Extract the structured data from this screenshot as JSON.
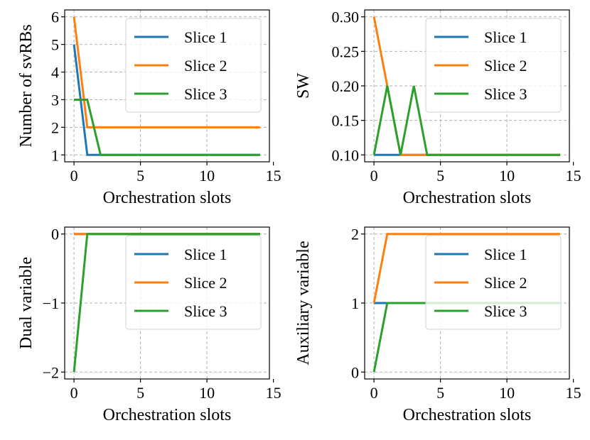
{
  "colors": {
    "slice1": "#1f77b4",
    "slice2": "#ff7f0e",
    "slice3": "#2ca02c"
  },
  "chart_data": [
    {
      "type": "line",
      "xlabel": "Orchestration slots",
      "ylabel": "Number of svRBs",
      "xlim": [
        -0.7,
        14.7
      ],
      "ylim": [
        0.75,
        6.25
      ],
      "xticks": [
        0,
        5,
        10,
        15
      ],
      "yticks": [
        1,
        2,
        3,
        4,
        5,
        6
      ],
      "ytick_labels": [
        "1",
        "2",
        "3",
        "4",
        "5",
        "6"
      ],
      "legend_position": "top-right",
      "grid": true,
      "series": [
        {
          "name": "Slice 1",
          "color": "#1f77b4",
          "x": [
            0,
            1,
            2,
            3,
            4,
            5,
            6,
            7,
            8,
            9,
            10,
            11,
            12,
            13,
            14
          ],
          "y": [
            5,
            1,
            1,
            1,
            1,
            1,
            1,
            1,
            1,
            1,
            1,
            1,
            1,
            1,
            1
          ]
        },
        {
          "name": "Slice 2",
          "color": "#ff7f0e",
          "x": [
            0,
            1,
            2,
            3,
            4,
            5,
            6,
            7,
            8,
            9,
            10,
            11,
            12,
            13,
            14
          ],
          "y": [
            6,
            2,
            2,
            2,
            2,
            2,
            2,
            2,
            2,
            2,
            2,
            2,
            2,
            2,
            2
          ]
        },
        {
          "name": "Slice 3",
          "color": "#2ca02c",
          "x": [
            0,
            1,
            2,
            3,
            4,
            5,
            6,
            7,
            8,
            9,
            10,
            11,
            12,
            13,
            14
          ],
          "y": [
            3,
            3,
            1,
            1,
            1,
            1,
            1,
            1,
            1,
            1,
            1,
            1,
            1,
            1,
            1
          ]
        }
      ]
    },
    {
      "type": "line",
      "xlabel": "Orchestration slots",
      "ylabel": "SW",
      "xlim": [
        -0.7,
        14.7
      ],
      "ylim": [
        0.09,
        0.31
      ],
      "xticks": [
        0,
        5,
        10,
        15
      ],
      "yticks": [
        0.1,
        0.15,
        0.2,
        0.25,
        0.3
      ],
      "ytick_labels": [
        "0.10",
        "0.15",
        "0.20",
        "0.25",
        "0.30"
      ],
      "legend_position": "top-right",
      "grid": true,
      "series": [
        {
          "name": "Slice 1",
          "color": "#1f77b4",
          "x": [
            0,
            1,
            2,
            3,
            4,
            5,
            6,
            7,
            8,
            9,
            10,
            11,
            12,
            13,
            14
          ],
          "y": [
            0.1,
            0.1,
            0.1,
            0.1,
            0.1,
            0.1,
            0.1,
            0.1,
            0.1,
            0.1,
            0.1,
            0.1,
            0.1,
            0.1,
            0.1
          ]
        },
        {
          "name": "Slice 2",
          "color": "#ff7f0e",
          "x": [
            0,
            1,
            2,
            3,
            4,
            5,
            6,
            7,
            8,
            9,
            10,
            11,
            12,
            13,
            14
          ],
          "y": [
            0.3,
            0.2,
            0.1,
            0.1,
            0.1,
            0.1,
            0.1,
            0.1,
            0.1,
            0.1,
            0.1,
            0.1,
            0.1,
            0.1,
            0.1
          ]
        },
        {
          "name": "Slice 3",
          "color": "#2ca02c",
          "x": [
            0,
            1,
            2,
            3,
            4,
            5,
            6,
            7,
            8,
            9,
            10,
            11,
            12,
            13,
            14
          ],
          "y": [
            0.1,
            0.2,
            0.1,
            0.2,
            0.1,
            0.1,
            0.1,
            0.1,
            0.1,
            0.1,
            0.1,
            0.1,
            0.1,
            0.1,
            0.1
          ]
        }
      ]
    },
    {
      "type": "line",
      "xlabel": "Orchestration slots",
      "ylabel": "Dual variable",
      "xlim": [
        -0.7,
        14.7
      ],
      "ylim": [
        -2.1,
        0.1
      ],
      "xticks": [
        0,
        5,
        10,
        15
      ],
      "yticks": [
        -2,
        -1,
        0
      ],
      "ytick_labels": [
        "−2",
        "−1",
        "0"
      ],
      "legend_position": "top-right",
      "grid": true,
      "series": [
        {
          "name": "Slice 1",
          "color": "#1f77b4",
          "x": [
            0,
            1,
            2,
            3,
            4,
            5,
            6,
            7,
            8,
            9,
            10,
            11,
            12,
            13,
            14
          ],
          "y": [
            0,
            0,
            0,
            0,
            0,
            0,
            0,
            0,
            0,
            0,
            0,
            0,
            0,
            0,
            0
          ]
        },
        {
          "name": "Slice 2",
          "color": "#ff7f0e",
          "x": [
            0,
            1,
            2,
            3,
            4,
            5,
            6,
            7,
            8,
            9,
            10,
            11,
            12,
            13,
            14
          ],
          "y": [
            0,
            0,
            0,
            0,
            0,
            0,
            0,
            0,
            0,
            0,
            0,
            0,
            0,
            0,
            0
          ]
        },
        {
          "name": "Slice 3",
          "color": "#2ca02c",
          "x": [
            0,
            1,
            2,
            3,
            4,
            5,
            6,
            7,
            8,
            9,
            10,
            11,
            12,
            13,
            14
          ],
          "y": [
            -2,
            0,
            0,
            0,
            0,
            0,
            0,
            0,
            0,
            0,
            0,
            0,
            0,
            0,
            0
          ]
        }
      ]
    },
    {
      "type": "line",
      "xlabel": "Orchestration slots",
      "ylabel": "Auxiliary variable",
      "xlim": [
        -0.7,
        14.7
      ],
      "ylim": [
        -0.1,
        2.1
      ],
      "xticks": [
        0,
        5,
        10,
        15
      ],
      "yticks": [
        0,
        1,
        2
      ],
      "ytick_labels": [
        "0",
        "1",
        "2"
      ],
      "legend_position": "top-right",
      "grid": true,
      "series": [
        {
          "name": "Slice 1",
          "color": "#1f77b4",
          "x": [
            0,
            1,
            2,
            3,
            4,
            5,
            6,
            7,
            8,
            9,
            10,
            11,
            12,
            13,
            14
          ],
          "y": [
            1,
            1,
            1,
            1,
            1,
            1,
            1,
            1,
            1,
            1,
            1,
            1,
            1,
            1,
            1
          ]
        },
        {
          "name": "Slice 2",
          "color": "#ff7f0e",
          "x": [
            0,
            1,
            2,
            3,
            4,
            5,
            6,
            7,
            8,
            9,
            10,
            11,
            12,
            13,
            14
          ],
          "y": [
            1,
            2,
            2,
            2,
            2,
            2,
            2,
            2,
            2,
            2,
            2,
            2,
            2,
            2,
            2
          ]
        },
        {
          "name": "Slice 3",
          "color": "#2ca02c",
          "x": [
            0,
            1,
            2,
            3,
            4,
            5,
            6,
            7,
            8,
            9,
            10,
            11,
            12,
            13,
            14
          ],
          "y": [
            0,
            1,
            1,
            1,
            1,
            1,
            1,
            1,
            1,
            1,
            1,
            1,
            1,
            1,
            1
          ]
        }
      ]
    }
  ]
}
